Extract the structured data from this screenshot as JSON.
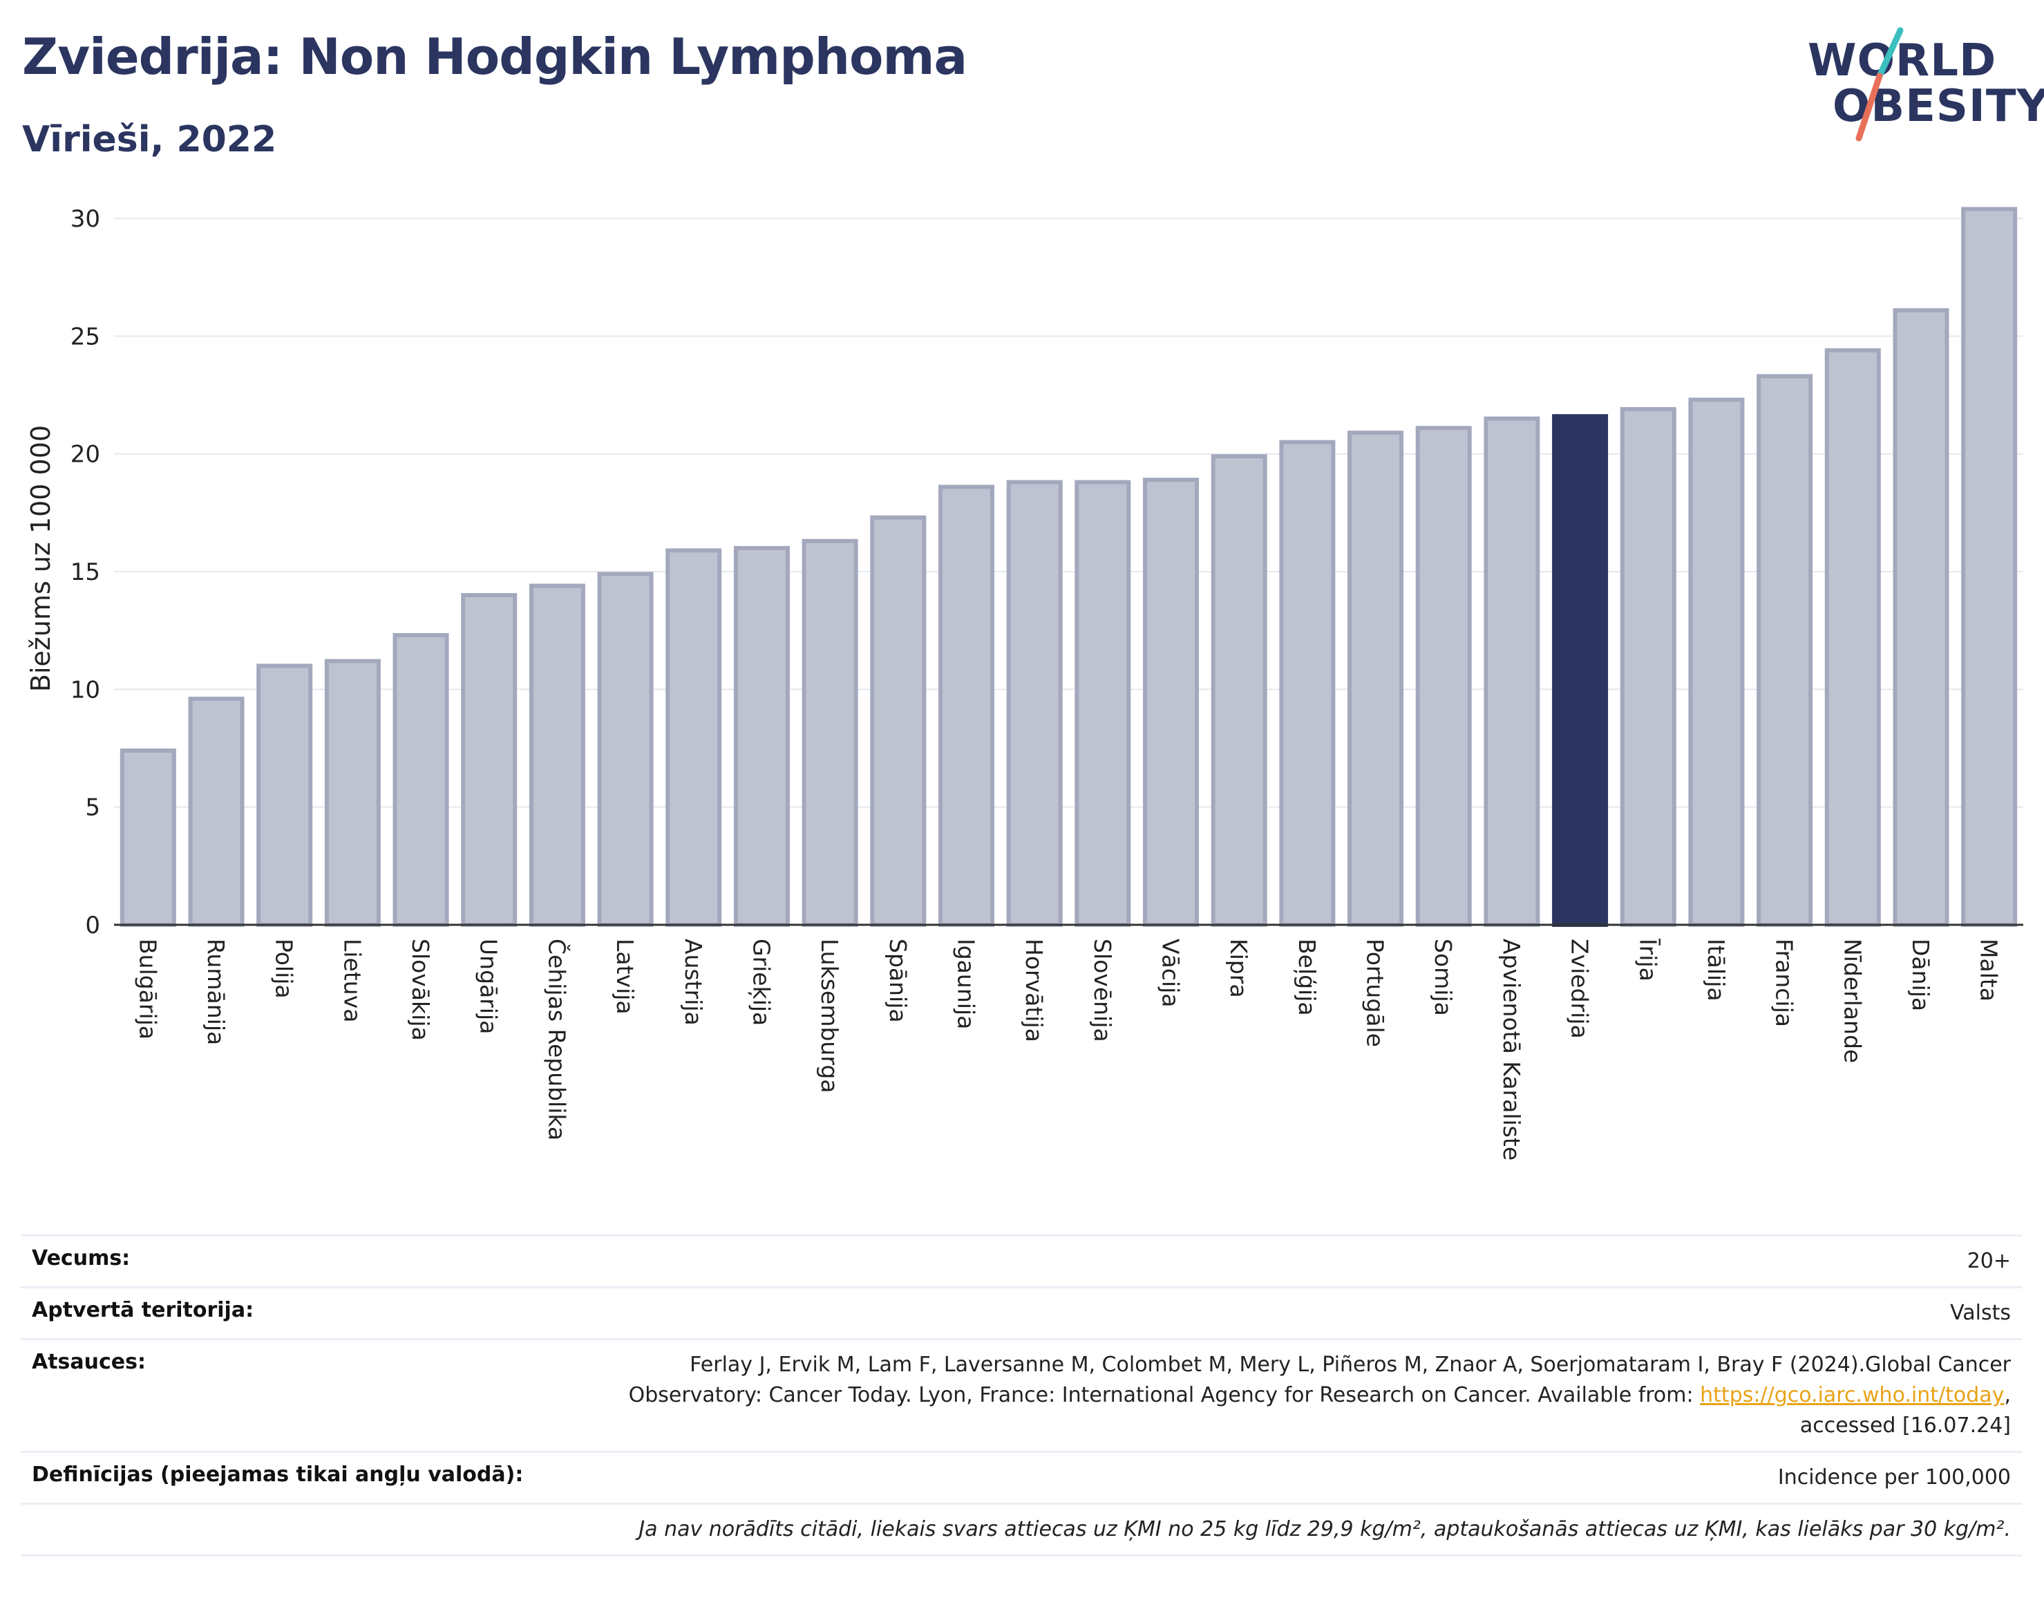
{
  "header": {
    "title": "Zviedrija: Non Hodgkin Lymphoma",
    "subtitle": "Vīrieši, 2022"
  },
  "logo": {
    "line1": "WORLD",
    "line2": "OBESITY",
    "accent_colors": [
      "#3bbfbf",
      "#e8705a"
    ]
  },
  "colors": {
    "bar_default": "#bfc3d1",
    "bar_border": "#a3a8bd",
    "bar_highlight": "#2b3560",
    "title": "#2b3560",
    "link": "#e8a317"
  },
  "chart_data": {
    "type": "bar",
    "title": "",
    "xlabel": "",
    "ylabel": "Biežums uz 100 000",
    "ylim": [
      0,
      31
    ],
    "yticks": [
      0,
      5,
      10,
      15,
      20,
      25,
      30
    ],
    "grid": true,
    "highlight": "Zviedrija",
    "categories": [
      "Bulgārija",
      "Rumānija",
      "Polija",
      "Lietuva",
      "Slovākija",
      "Ungārija",
      "Čehijas Republika",
      "Latvija",
      "Austrija",
      "Grieķija",
      "Luksemburga",
      "Spānija",
      "Igaunija",
      "Horvātija",
      "Slovēnija",
      "Vācija",
      "Kipra",
      "Beļģija",
      "Portugāle",
      "Somija",
      "Apvienotā Karaliste",
      "Zviedrija",
      "Īrija",
      "Itālija",
      "Francija",
      "Nīderlande",
      "Dānija",
      "Malta"
    ],
    "values": [
      7.4,
      9.6,
      11.0,
      11.2,
      12.3,
      14.0,
      14.4,
      14.9,
      15.9,
      16.0,
      16.3,
      17.3,
      18.6,
      18.8,
      18.8,
      18.9,
      19.9,
      20.5,
      20.9,
      21.1,
      21.5,
      21.6,
      21.9,
      22.3,
      23.3,
      24.4,
      26.1,
      30.4
    ]
  },
  "info": {
    "rows": [
      {
        "label": "Vecums:",
        "value": "20+"
      },
      {
        "label": "Aptvertā teritorija:",
        "value": "Valsts"
      }
    ],
    "references": {
      "label": "Atsauces:",
      "line1": "Ferlay J, Ervik M, Lam F, Laversanne M, Colombet M, Mery L, Piñeros M, Znaor A, Soerjomataram I, Bray F (2024).Global Cancer",
      "line2_pre": "Observatory: Cancer Today. Lyon, France: International Agency for Research on Cancer. Available from: ",
      "link": "https://gco.iarc.who.int/today",
      "line2_post": ",",
      "line3": "accessed [16.07.24]"
    },
    "definitions": {
      "label": "Definīcijas (pieejamas tikai angļu valodā):",
      "value": "Incidence per 100,000"
    },
    "note": "Ja nav norādīts citādi, liekais svars attiecas uz ĶMI no 25 kg līdz 29,9 kg/m², aptaukošanās attiecas uz ĶMI, kas lielāks par 30 kg/m²."
  }
}
